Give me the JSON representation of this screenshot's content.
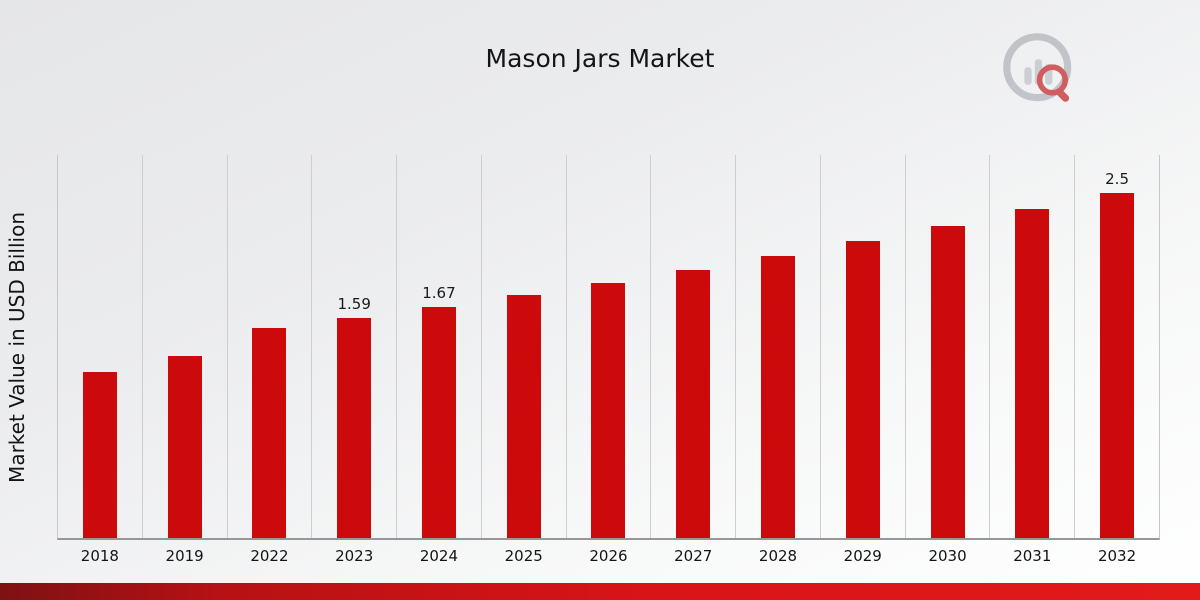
{
  "title": "Mason Jars Market",
  "ylabel": "Market Value in USD Billion",
  "colors": {
    "bar": "#cc0a0c",
    "bottom_stripe_dark": "#7e1113",
    "bottom_stripe_bright": "#e21a1a",
    "background": "#e9eaec"
  },
  "logo": {
    "name": "market-research-bar-chart-magnifier-logo"
  },
  "chart_data": {
    "type": "bar",
    "title": "Mason Jars Market",
    "xlabel": "",
    "ylabel": "Market Value in USD Billion",
    "categories": [
      "2018",
      "2019",
      "2022",
      "2023",
      "2024",
      "2025",
      "2026",
      "2027",
      "2028",
      "2029",
      "2030",
      "2031",
      "2032"
    ],
    "values": [
      1.2,
      1.32,
      1.52,
      1.59,
      1.67,
      1.76,
      1.85,
      1.94,
      2.04,
      2.15,
      2.26,
      2.38,
      2.5
    ],
    "annotations": [
      {
        "category": "2023",
        "text": "1.59"
      },
      {
        "category": "2024",
        "text": "1.67"
      },
      {
        "category": "2032",
        "text": "2.5"
      }
    ],
    "ylim": [
      0,
      2.774
    ],
    "grid": "vertical-only",
    "legend": "none",
    "bar_color": "#cc0a0c"
  }
}
